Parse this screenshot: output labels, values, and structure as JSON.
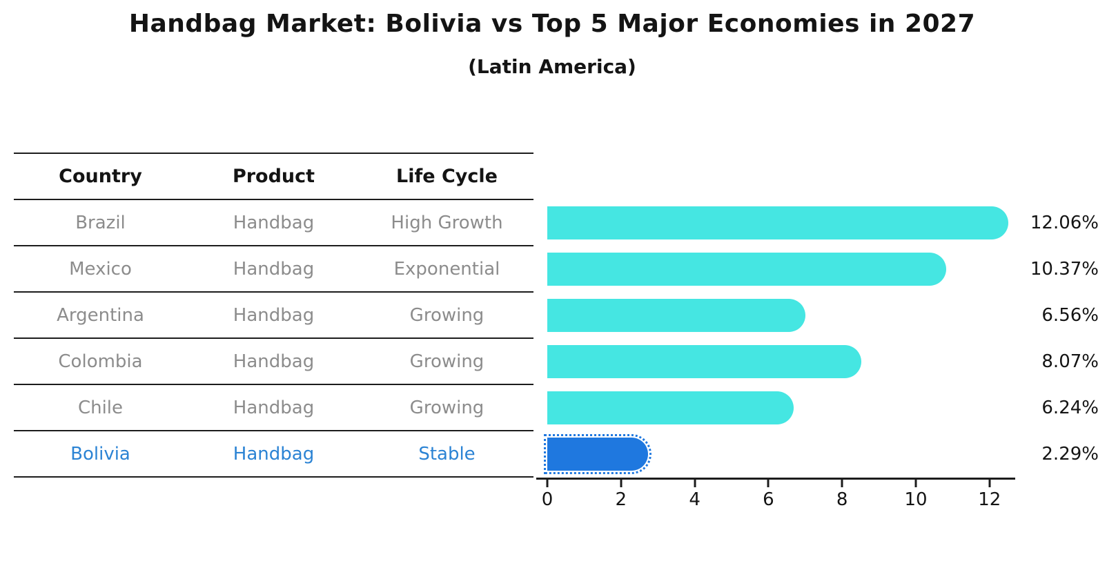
{
  "title": "Handbag Market: Bolivia vs Top 5 Major Economies in 2027",
  "subtitle": "(Latin America)",
  "table": {
    "headers": {
      "country": "Country",
      "product": "Product",
      "life_cycle": "Life Cycle"
    },
    "rows": [
      {
        "country": "Brazil",
        "product": "Handbag",
        "life_cycle": "High Growth"
      },
      {
        "country": "Mexico",
        "product": "Handbag",
        "life_cycle": "Exponential"
      },
      {
        "country": "Argentina",
        "product": "Handbag",
        "life_cycle": "Growing"
      },
      {
        "country": "Colombia",
        "product": "Handbag",
        "life_cycle": "Growing"
      },
      {
        "country": "Chile",
        "product": "Handbag",
        "life_cycle": "Growing"
      },
      {
        "country": "Bolivia",
        "product": "Handbag",
        "life_cycle": "Stable"
      }
    ]
  },
  "chart_data": {
    "type": "bar",
    "orientation": "horizontal",
    "title": "Handbag Market: Bolivia vs Top 5 Major Economies in 2027",
    "subtitle": "(Latin America)",
    "categories": [
      "Brazil",
      "Mexico",
      "Argentina",
      "Colombia",
      "Chile",
      "Bolivia"
    ],
    "values": [
      12.06,
      10.37,
      6.56,
      8.07,
      6.24,
      2.29
    ],
    "value_labels": [
      "12.06%",
      "10.37%",
      "6.56%",
      "8.07%",
      "6.24%",
      "2.29%"
    ],
    "x_ticks": [
      0,
      2,
      4,
      6,
      8,
      10,
      12
    ],
    "xlim": [
      -0.3,
      12.7
    ],
    "grid": false,
    "legend": "none",
    "highlight_index": 5,
    "bar_color": "#45e6e2",
    "highlight_bar_color": "#1f78df",
    "highlight_text_color": "#2b83d4"
  }
}
